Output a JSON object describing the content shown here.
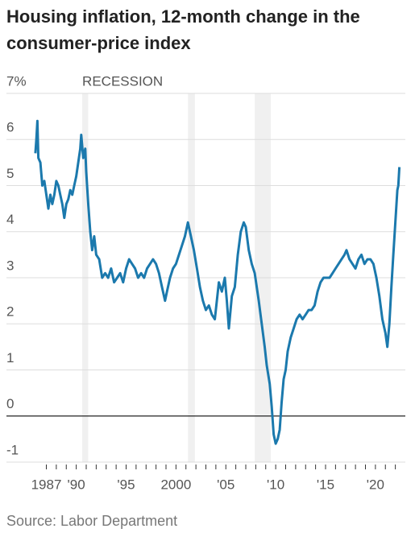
{
  "chart_data": {
    "type": "line",
    "title": "Housing inflation, 12-month change in the consumer-price index",
    "source": "Source: Labor Department",
    "recession_label": "RECESSION",
    "recessions": [
      [
        1990.6,
        1991.2
      ],
      [
        2001.2,
        2001.9
      ],
      [
        2007.9,
        2009.5
      ]
    ],
    "color": "#1b79ad",
    "x": [
      1985.9,
      1986.0,
      1986.1,
      1986.2,
      1986.4,
      1986.6,
      1986.8,
      1987.0,
      1987.2,
      1987.4,
      1987.6,
      1987.8,
      1988.0,
      1988.2,
      1988.4,
      1988.6,
      1988.8,
      1989.0,
      1989.2,
      1989.4,
      1989.6,
      1989.8,
      1990.0,
      1990.2,
      1990.4,
      1990.5,
      1990.7,
      1990.9,
      1991.0,
      1991.2,
      1991.4,
      1991.6,
      1991.8,
      1992.0,
      1992.3,
      1992.6,
      1992.9,
      1993.2,
      1993.5,
      1993.8,
      1994.1,
      1994.4,
      1994.7,
      1995.0,
      1995.3,
      1995.6,
      1995.9,
      1996.2,
      1996.5,
      1996.8,
      1997.1,
      1997.4,
      1997.7,
      1998.0,
      1998.3,
      1998.6,
      1998.9,
      1999.1,
      1999.4,
      1999.7,
      2000.0,
      2000.3,
      2000.6,
      2000.9,
      2001.2,
      2001.5,
      2001.8,
      2002.1,
      2002.4,
      2002.7,
      2003.0,
      2003.3,
      2003.6,
      2003.9,
      2004.1,
      2004.3,
      2004.6,
      2004.9,
      2005.1,
      2005.3,
      2005.6,
      2005.9,
      2006.2,
      2006.5,
      2006.8,
      2007.0,
      2007.3,
      2007.6,
      2007.9,
      2008.1,
      2008.3,
      2008.6,
      2008.9,
      2009.1,
      2009.4,
      2009.6,
      2009.8,
      2010.0,
      2010.2,
      2010.4,
      2010.6,
      2010.8,
      2011.0,
      2011.2,
      2011.5,
      2011.8,
      2012.1,
      2012.4,
      2012.7,
      2013.0,
      2013.3,
      2013.6,
      2013.9,
      2014.2,
      2014.5,
      2014.8,
      2015.1,
      2015.4,
      2015.7,
      2016.0,
      2016.3,
      2016.6,
      2016.9,
      2017.1,
      2017.4,
      2017.7,
      2018.0,
      2018.3,
      2018.6,
      2018.9,
      2019.2,
      2019.5,
      2019.8,
      2020.1,
      2020.4,
      2020.7,
      2021.0,
      2021.2,
      2021.4,
      2021.6,
      2021.8,
      2022.0,
      2022.2,
      2022.3,
      2022.4
    ],
    "values": [
      5.7,
      6.0,
      6.4,
      5.6,
      5.5,
      5.0,
      5.1,
      4.8,
      4.5,
      4.8,
      4.6,
      4.8,
      5.1,
      5.0,
      4.8,
      4.6,
      4.3,
      4.6,
      4.7,
      4.9,
      4.8,
      5.0,
      5.2,
      5.5,
      5.8,
      6.1,
      5.6,
      5.8,
      5.3,
      4.6,
      4.0,
      3.6,
      3.9,
      3.5,
      3.4,
      3.0,
      3.1,
      3.0,
      3.2,
      2.9,
      3.0,
      3.1,
      2.9,
      3.2,
      3.4,
      3.3,
      3.2,
      3.0,
      3.1,
      3.0,
      3.2,
      3.3,
      3.4,
      3.3,
      3.1,
      2.8,
      2.5,
      2.7,
      3.0,
      3.2,
      3.3,
      3.5,
      3.7,
      3.9,
      4.2,
      3.9,
      3.6,
      3.2,
      2.8,
      2.5,
      2.3,
      2.4,
      2.2,
      2.1,
      2.5,
      2.9,
      2.7,
      3.0,
      2.5,
      1.9,
      2.6,
      2.8,
      3.5,
      4.0,
      4.2,
      4.1,
      3.6,
      3.3,
      3.1,
      2.8,
      2.5,
      2.0,
      1.5,
      1.1,
      0.7,
      0.2,
      -0.4,
      -0.6,
      -0.5,
      -0.3,
      0.3,
      0.8,
      1.0,
      1.4,
      1.7,
      1.9,
      2.1,
      2.2,
      2.1,
      2.2,
      2.3,
      2.3,
      2.4,
      2.7,
      2.9,
      3.0,
      3.0,
      3.0,
      3.1,
      3.2,
      3.3,
      3.4,
      3.5,
      3.6,
      3.4,
      3.3,
      3.2,
      3.4,
      3.5,
      3.3,
      3.4,
      3.4,
      3.3,
      3.0,
      2.6,
      2.1,
      1.8,
      1.5,
      2.0,
      2.8,
      3.5,
      4.2,
      4.9,
      5.0,
      5.4
    ],
    "xlim": [
      1983,
      2023
    ],
    "ylim": [
      -1,
      7
    ],
    "yticks": [
      {
        "value": 7,
        "label": "7%"
      },
      6,
      5,
      4,
      3,
      2,
      1,
      0,
      -1
    ],
    "xticks": [
      {
        "value": 1987,
        "label": "1987"
      },
      {
        "value": 1990,
        "label": "'90"
      },
      {
        "value": 1995,
        "label": "'95"
      },
      {
        "value": 2000,
        "label": "2000"
      },
      {
        "value": 2005,
        "label": "'05"
      },
      {
        "value": 2010,
        "label": "'10"
      },
      {
        "value": 2015,
        "label": "'15"
      },
      {
        "value": 2020,
        "label": "'20"
      }
    ],
    "x_minor_ticks": [
      1987,
      1988,
      1989,
      1990,
      1991,
      1992,
      1993,
      1994,
      1995,
      1996,
      1997,
      1998,
      1999,
      2000,
      2001,
      2002,
      2003,
      2004,
      2005,
      2006,
      2007,
      2008,
      2009,
      2010,
      2011,
      2012,
      2013,
      2014,
      2015,
      2016,
      2017,
      2018,
      2019,
      2020,
      2021,
      2022
    ],
    "grid": true
  }
}
